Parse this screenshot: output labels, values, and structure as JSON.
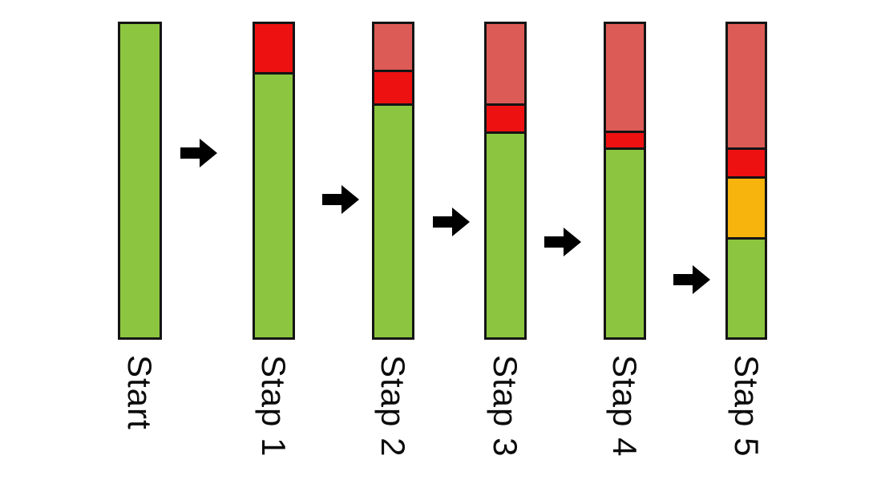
{
  "colors": {
    "green": "#8CC540",
    "red": "#EE1111",
    "salmon": "#DD5B57",
    "orange": "#F6B40D",
    "outline": "#141414",
    "background": "#FFFFFF",
    "arrow": "#000000"
  },
  "icons": {
    "arrow": "arrow-right-icon"
  },
  "chart_data": {
    "type": "bar",
    "subtype": "stacked-vertical-process-sequence",
    "title": "",
    "xlabel": "",
    "ylabel": "",
    "legend": "none",
    "grid": false,
    "axis_ticks": "none",
    "categories": [
      "Start",
      "Stap 1",
      "Stap 2",
      "Stap 3",
      "Stap 4",
      "Stap 5"
    ],
    "bar_height_pct": 100,
    "bars": [
      {
        "label": "Start",
        "segments": [
          {
            "color": "green",
            "pct": 100
          }
        ]
      },
      {
        "label": "Stap 1",
        "segments": [
          {
            "color": "red",
            "pct": 15.4
          },
          {
            "color": "green",
            "pct": 84.6
          }
        ]
      },
      {
        "label": "Stap 2",
        "segments": [
          {
            "color": "salmon",
            "pct": 14.6
          },
          {
            "color": "red",
            "pct": 10.8
          },
          {
            "color": "green",
            "pct": 74.6
          }
        ]
      },
      {
        "label": "Stap 3",
        "segments": [
          {
            "color": "salmon",
            "pct": 25.2
          },
          {
            "color": "red",
            "pct": 9.1
          },
          {
            "color": "green",
            "pct": 65.7
          }
        ]
      },
      {
        "label": "Stap 4",
        "segments": [
          {
            "color": "salmon",
            "pct": 34.0
          },
          {
            "color": "red",
            "pct": 5.3
          },
          {
            "color": "green",
            "pct": 60.7
          }
        ]
      },
      {
        "label": "Stap 5",
        "segments": [
          {
            "color": "salmon",
            "pct": 39.3
          },
          {
            "color": "red",
            "pct": 9.3
          },
          {
            "color": "orange",
            "pct": 19.4
          },
          {
            "color": "green",
            "pct": 32.0
          }
        ]
      }
    ],
    "series": [
      {
        "name": "salmon-top-segment",
        "values": [
          0,
          0,
          14.6,
          25.2,
          34.0,
          39.3
        ]
      },
      {
        "name": "red-segment",
        "values": [
          0,
          15.4,
          10.8,
          9.1,
          5.3,
          9.3
        ]
      },
      {
        "name": "orange-segment",
        "values": [
          0,
          0,
          0,
          0,
          0,
          19.4
        ]
      },
      {
        "name": "green-segment",
        "values": [
          100,
          84.6,
          74.6,
          65.7,
          60.7,
          32.0
        ]
      }
    ],
    "arrow_count": 5
  }
}
